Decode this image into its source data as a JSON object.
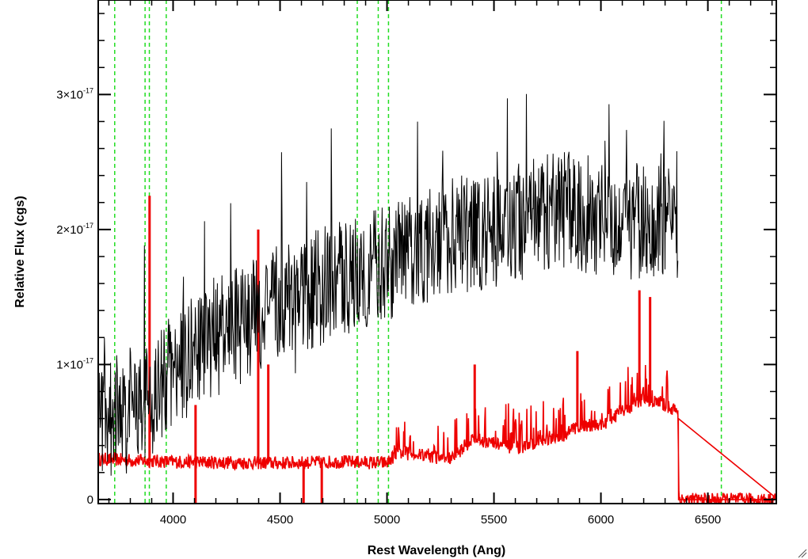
{
  "chart_data": {
    "type": "line",
    "title": "",
    "xlabel": "Rest Wavelength (Ang)",
    "ylabel": "Relative Flux (cgs)",
    "xlim": [
      3650,
      6820
    ],
    "ylim": [
      -3e-19,
      3.7e-17
    ],
    "x_ticks": [
      4000,
      4500,
      5000,
      5500,
      6000,
      6500
    ],
    "x_tick_labels": [
      "4000",
      "4500",
      "5000",
      "5500",
      "6000",
      "6500"
    ],
    "y_ticks": [
      {
        "value": 0,
        "mantissa": "0",
        "exponent": ""
      },
      {
        "value": 1e-17,
        "mantissa": "1×10",
        "exponent": "-17"
      },
      {
        "value": 2e-17,
        "mantissa": "2×10",
        "exponent": "-17"
      },
      {
        "value": 3e-17,
        "mantissa": "3×10",
        "exponent": "-17"
      }
    ],
    "grid": false,
    "vertical_markers": {
      "style": "dashed",
      "color": "#22dd22",
      "x": [
        3727,
        3869,
        3889,
        3968,
        4861,
        4959,
        5007,
        6563
      ]
    },
    "series": [
      {
        "color": "#000000",
        "description": "observed spectrum (noisy)",
        "trend_x": [
          3650,
          3800,
          3900,
          4000,
          4200,
          4500,
          4800,
          5000,
          5300,
          5500,
          5800,
          6000,
          6200,
          6360
        ],
        "trend_y": [
          6e-18,
          7e-18,
          7.5e-18,
          9.5e-18,
          1.2e-17,
          1.45e-17,
          1.65e-17,
          1.75e-17,
          1.95e-17,
          2e-17,
          2.15e-17,
          2.1e-17,
          2.05e-17,
          2.05e-17
        ],
        "noise": 5.5e-18,
        "x_end": 6360
      },
      {
        "color": "#ee0000",
        "description": "error spectrum",
        "trend_x": [
          3650,
          4000,
          4500,
          4800,
          5000,
          5050,
          5300,
          5400,
          5600,
          5800,
          5900,
          6000,
          6100,
          6200,
          6300,
          6360,
          6365,
          6820
        ],
        "trend_y": [
          3e-18,
          2.8e-18,
          2.7e-18,
          2.8e-18,
          2.7e-18,
          3.5e-18,
          3e-18,
          4.5e-18,
          3.8e-18,
          4.5e-18,
          5.5e-18,
          5.5e-18,
          6.5e-18,
          7.5e-18,
          7e-18,
          6.5e-18,
          0.0,
          0.0
        ],
        "noise": 5e-19,
        "spikes": [
          {
            "x": 3890,
            "y": 2.25e-17
          },
          {
            "x": 4398,
            "y": 2e-17
          },
          {
            "x": 4445,
            "y": 1e-17
          },
          {
            "x": 4105,
            "y": 7e-18
          },
          {
            "x": 5410,
            "y": 1e-17
          },
          {
            "x": 5890,
            "y": 1.1e-17
          },
          {
            "x": 6180,
            "y": 1.55e-17
          },
          {
            "x": 6230,
            "y": 1.5e-17
          }
        ],
        "dips": [
          {
            "x": 4105,
            "y": -3e-19
          },
          {
            "x": 4610,
            "y": -3e-19
          },
          {
            "x": 4695,
            "y": -3e-19
          }
        ]
      }
    ]
  }
}
